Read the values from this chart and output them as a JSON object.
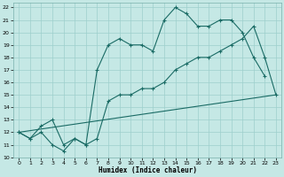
{
  "xlabel": "Humidex (Indice chaleur)",
  "xlim": [
    -0.5,
    23.5
  ],
  "ylim": [
    10,
    22.4
  ],
  "yticks": [
    10,
    11,
    12,
    13,
    14,
    15,
    16,
    17,
    18,
    19,
    20,
    21,
    22
  ],
  "xticks": [
    0,
    1,
    2,
    3,
    4,
    5,
    6,
    7,
    8,
    9,
    10,
    11,
    12,
    13,
    14,
    15,
    16,
    17,
    18,
    19,
    20,
    21,
    22,
    23
  ],
  "bg_color": "#c5e8e5",
  "grid_color": "#9dcfcc",
  "line_color": "#1a6b65",
  "line1_x": [
    0,
    23
  ],
  "line1_y": [
    12,
    15
  ],
  "line2_x": [
    0,
    1,
    2,
    3,
    4,
    5,
    6,
    7,
    8,
    9,
    10,
    11,
    12,
    13,
    14,
    15,
    16,
    17,
    18,
    19,
    20,
    21,
    22
  ],
  "line2_y": [
    12,
    11.5,
    12,
    11,
    10.5,
    11.5,
    11,
    17,
    19,
    19.5,
    19,
    19,
    18.5,
    21,
    22,
    21.5,
    20.5,
    20.5,
    21,
    21,
    20,
    18,
    16.5
  ],
  "line3_x": [
    0,
    1,
    2,
    3,
    4,
    5,
    6,
    7,
    8,
    9,
    10,
    11,
    12,
    13,
    14,
    15,
    16,
    17,
    18,
    19,
    20,
    21,
    22,
    23
  ],
  "line3_y": [
    12,
    11.5,
    12.5,
    13,
    11,
    11.5,
    11,
    11.5,
    14.5,
    15,
    15,
    15.5,
    15.5,
    16,
    17,
    17.5,
    18,
    18,
    18.5,
    19,
    19.5,
    20.5,
    18,
    15
  ]
}
